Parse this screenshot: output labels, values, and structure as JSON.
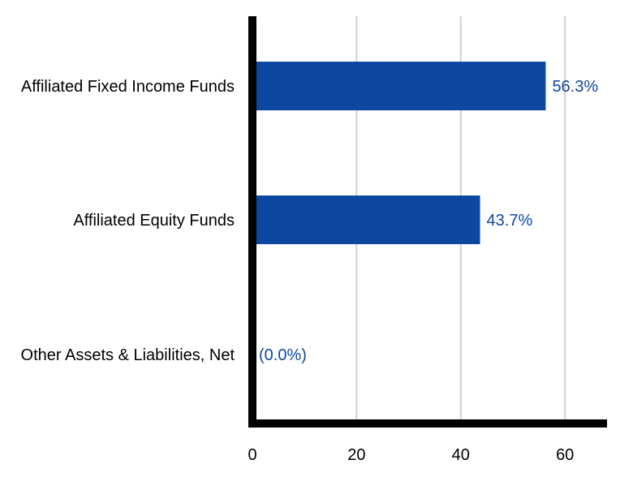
{
  "chart_data": {
    "type": "bar",
    "orientation": "horizontal",
    "categories": [
      "Affiliated Fixed Income Funds",
      "Affiliated Equity Funds",
      "Other Assets & Liabilities, Net"
    ],
    "values": [
      56.3,
      43.7,
      0.0
    ],
    "data_labels": [
      "56.3%",
      "43.7%",
      "(0.0%)"
    ],
    "title": "",
    "xlabel": "",
    "ylabel": "",
    "xlim": [
      0,
      68
    ],
    "xticks": [
      0,
      20,
      40,
      60
    ],
    "xtick_labels": [
      "0",
      "20",
      "40",
      "60"
    ],
    "grid": "vertical",
    "legend": "none",
    "colors": {
      "bar": "#0D47A1",
      "data_label": "#0D47A1",
      "axis": "#000000",
      "grid": "#D0D0D0"
    }
  }
}
